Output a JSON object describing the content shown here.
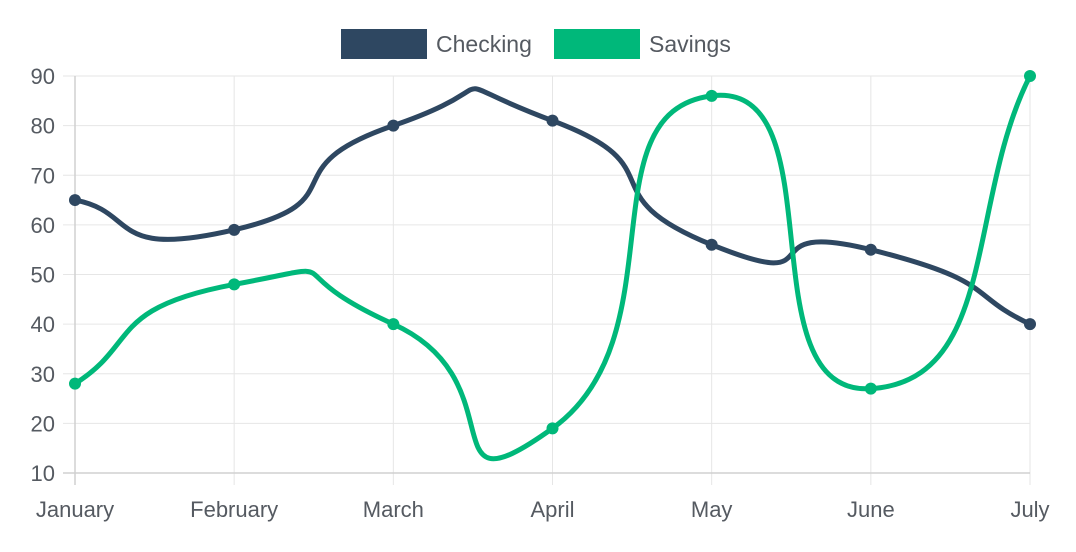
{
  "chart_data": {
    "type": "line",
    "categories": [
      "January",
      "February",
      "March",
      "April",
      "May",
      "June",
      "July"
    ],
    "series": [
      {
        "name": "Checking",
        "values": [
          65,
          59,
          80,
          81,
          56,
          55,
          40
        ],
        "color": "#2e4761"
      },
      {
        "name": "Savings",
        "values": [
          28,
          48,
          40,
          19,
          86,
          27,
          90
        ],
        "color": "#00b87a"
      }
    ],
    "title": "",
    "xlabel": "",
    "ylabel": "",
    "ylim": [
      10,
      90
    ],
    "yticks": [
      10,
      20,
      30,
      40,
      50,
      60,
      70,
      80,
      90
    ],
    "grid": true,
    "legend": "top-center",
    "smooth": true
  }
}
